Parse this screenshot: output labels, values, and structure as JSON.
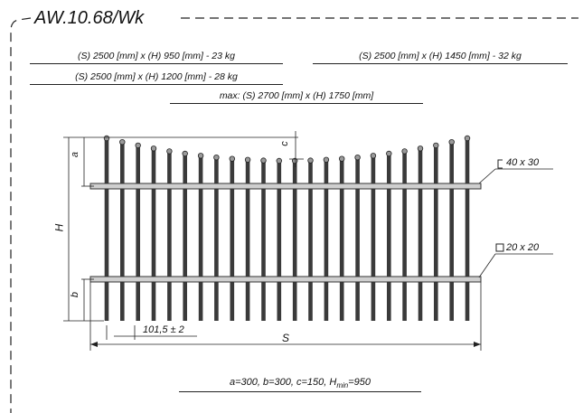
{
  "title": "AW.10.68/Wk",
  "specs": {
    "s950": "(S) 2500 [mm] x (H) 950 [mm]  -  23 kg",
    "s1200": "(S) 2500 [mm] x (H) 1200 [mm]  -  28 kg",
    "s1450": "(S) 2500 [mm] x (H) 1450 [mm]  -  32 kg",
    "max": "max: (S) 2700 [mm] x (H) 1750 [mm]"
  },
  "labels": {
    "a": "a",
    "b": "b",
    "c": "c",
    "H": "H",
    "S": "S",
    "spacing": "101,5 ± 2",
    "top_rail": "40 x 30",
    "bottom_rail": "20 x 20",
    "formula_main": "a=300, b=300, c=150, H",
    "formula_sub": "min",
    "formula_end": "=950"
  },
  "colors": {
    "bar": "#3a3a3a",
    "rail": "#c8c8c8",
    "line": "#111111"
  }
}
